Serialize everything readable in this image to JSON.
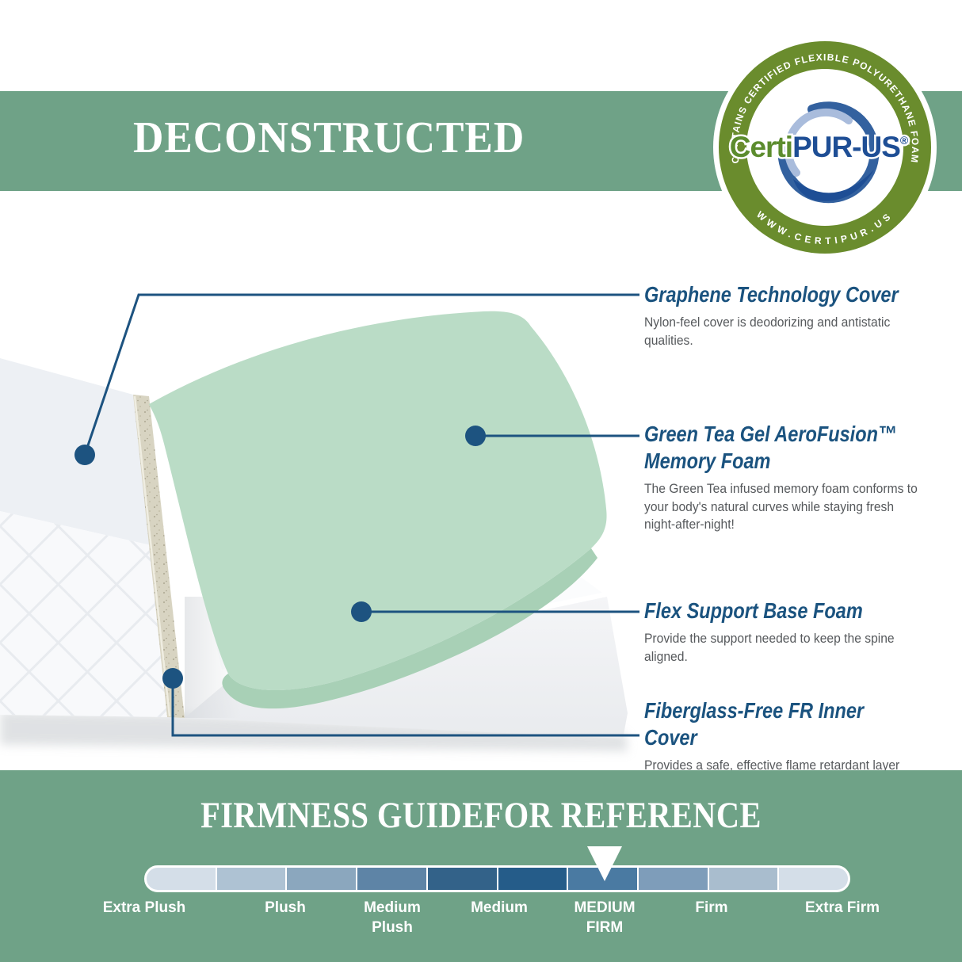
{
  "banner": {
    "title": "DECONSTRUCTED"
  },
  "badge": {
    "arc_top": "CONTAINS CERTIFIED FLEXIBLE POLYURETHANE FOAM",
    "arc_bottom": "WWW.CERTIPUR.US",
    "brand_green": "Certi",
    "brand_blue": "PUR-US",
    "registered": "®",
    "ring_color": "#6a8c2d",
    "brand_green_color": "#5c8c2e",
    "brand_blue_color": "#1e4e95"
  },
  "callouts": [
    {
      "title": "Graphene Technology Cover",
      "description": "Nylon-feel cover is deodorizing and antistatic\nqualities."
    },
    {
      "title": "Green Tea Gel AeroFusion™\nMemory Foam",
      "description": "The Green Tea infused memory foam conforms to\nyour body's natural curves while staying fresh\nnight-after-night!"
    },
    {
      "title": "Flex Support Base Foam",
      "description": "Provide the support needed to keep the spine\naligned."
    },
    {
      "title": "Fiberglass-Free FR Inner Cover",
      "description": "Provides a safe, effective flame retardant layer\naround mattress."
    }
  ],
  "firmness": {
    "title": "FIRMNESS GUIDEFOR REFERENCE",
    "labels": [
      "Extra Plush",
      "Plush",
      "Medium\nPlush",
      "Medium",
      "MEDIUM\nFIRM",
      "Firm",
      "Extra Firm"
    ],
    "segment_colors": [
      "#d4dee8",
      "#aec2d3",
      "#8ba7be",
      "#5e84a6",
      "#336289",
      "#255c89",
      "#4a7aa2",
      "#7e9dba",
      "#a9bdce",
      "#d4dee8"
    ],
    "pointer_segment_index": 6,
    "pointer_label": "MEDIUM FIRM"
  },
  "colors": {
    "sage_green": "#6fa287",
    "callout_navy": "#1d5380",
    "description_gray": "#56595c",
    "memory_foam_green": "#badcc6",
    "memory_foam_side_green": "#a8d0b6",
    "fr_cover_beige": "#d8d4c2"
  }
}
